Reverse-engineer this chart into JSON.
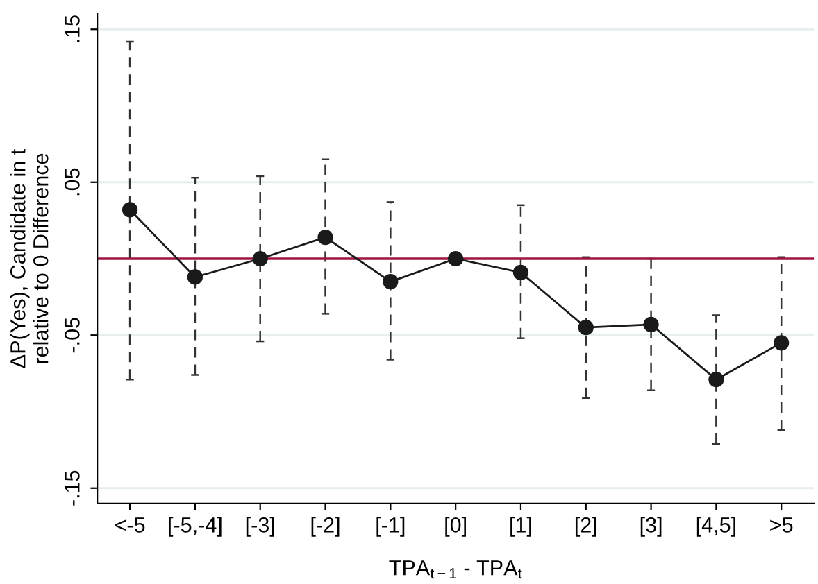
{
  "chart_data": {
    "type": "line",
    "xlabel": "TPA$_{t−1}$ - TPA$_{t}$",
    "ylabel": "ΔP(Yes), Candidate in t\nrelative to 0 Difference",
    "categories": [
      "<-5",
      "[-5,-4]",
      "[-3]",
      "[-2]",
      "[-1]",
      "[0]",
      "[1]",
      "[2]",
      "[3]",
      "[4,5]",
      ">5"
    ],
    "series": [
      {
        "color": "#1a1a1a",
        "values": [
          0.032,
          -0.012,
          0.0,
          0.014,
          -0.015,
          0.0,
          -0.009,
          -0.045,
          -0.043,
          -0.079,
          -0.055
        ],
        "errors": [
          [
            -0.079,
            0.142
          ],
          [
            -0.076,
            0.053
          ],
          [
            -0.054,
            0.054
          ],
          [
            -0.036,
            0.065
          ],
          [
            -0.066,
            0.037
          ],
          null,
          [
            -0.052,
            0.035
          ],
          [
            -0.091,
            0.001
          ],
          [
            -0.086,
            0.0
          ],
          [
            -0.121,
            -0.037
          ],
          [
            -0.112,
            0.001
          ]
        ]
      }
    ],
    "ylim": [
      -0.16,
      0.16
    ],
    "yticks": [
      {
        "value": -0.15,
        "label": "-.15"
      },
      {
        "value": -0.05,
        "label": "-.05"
      },
      {
        "value": 0.05,
        "label": ".05"
      },
      {
        "value": 0.15,
        "label": ".15"
      }
    ],
    "ref_lines": [
      {
        "axis": "y",
        "value": 0,
        "color": "#a0153e"
      }
    ],
    "grid": "y",
    "marker": "circle",
    "line_style": "solid"
  }
}
